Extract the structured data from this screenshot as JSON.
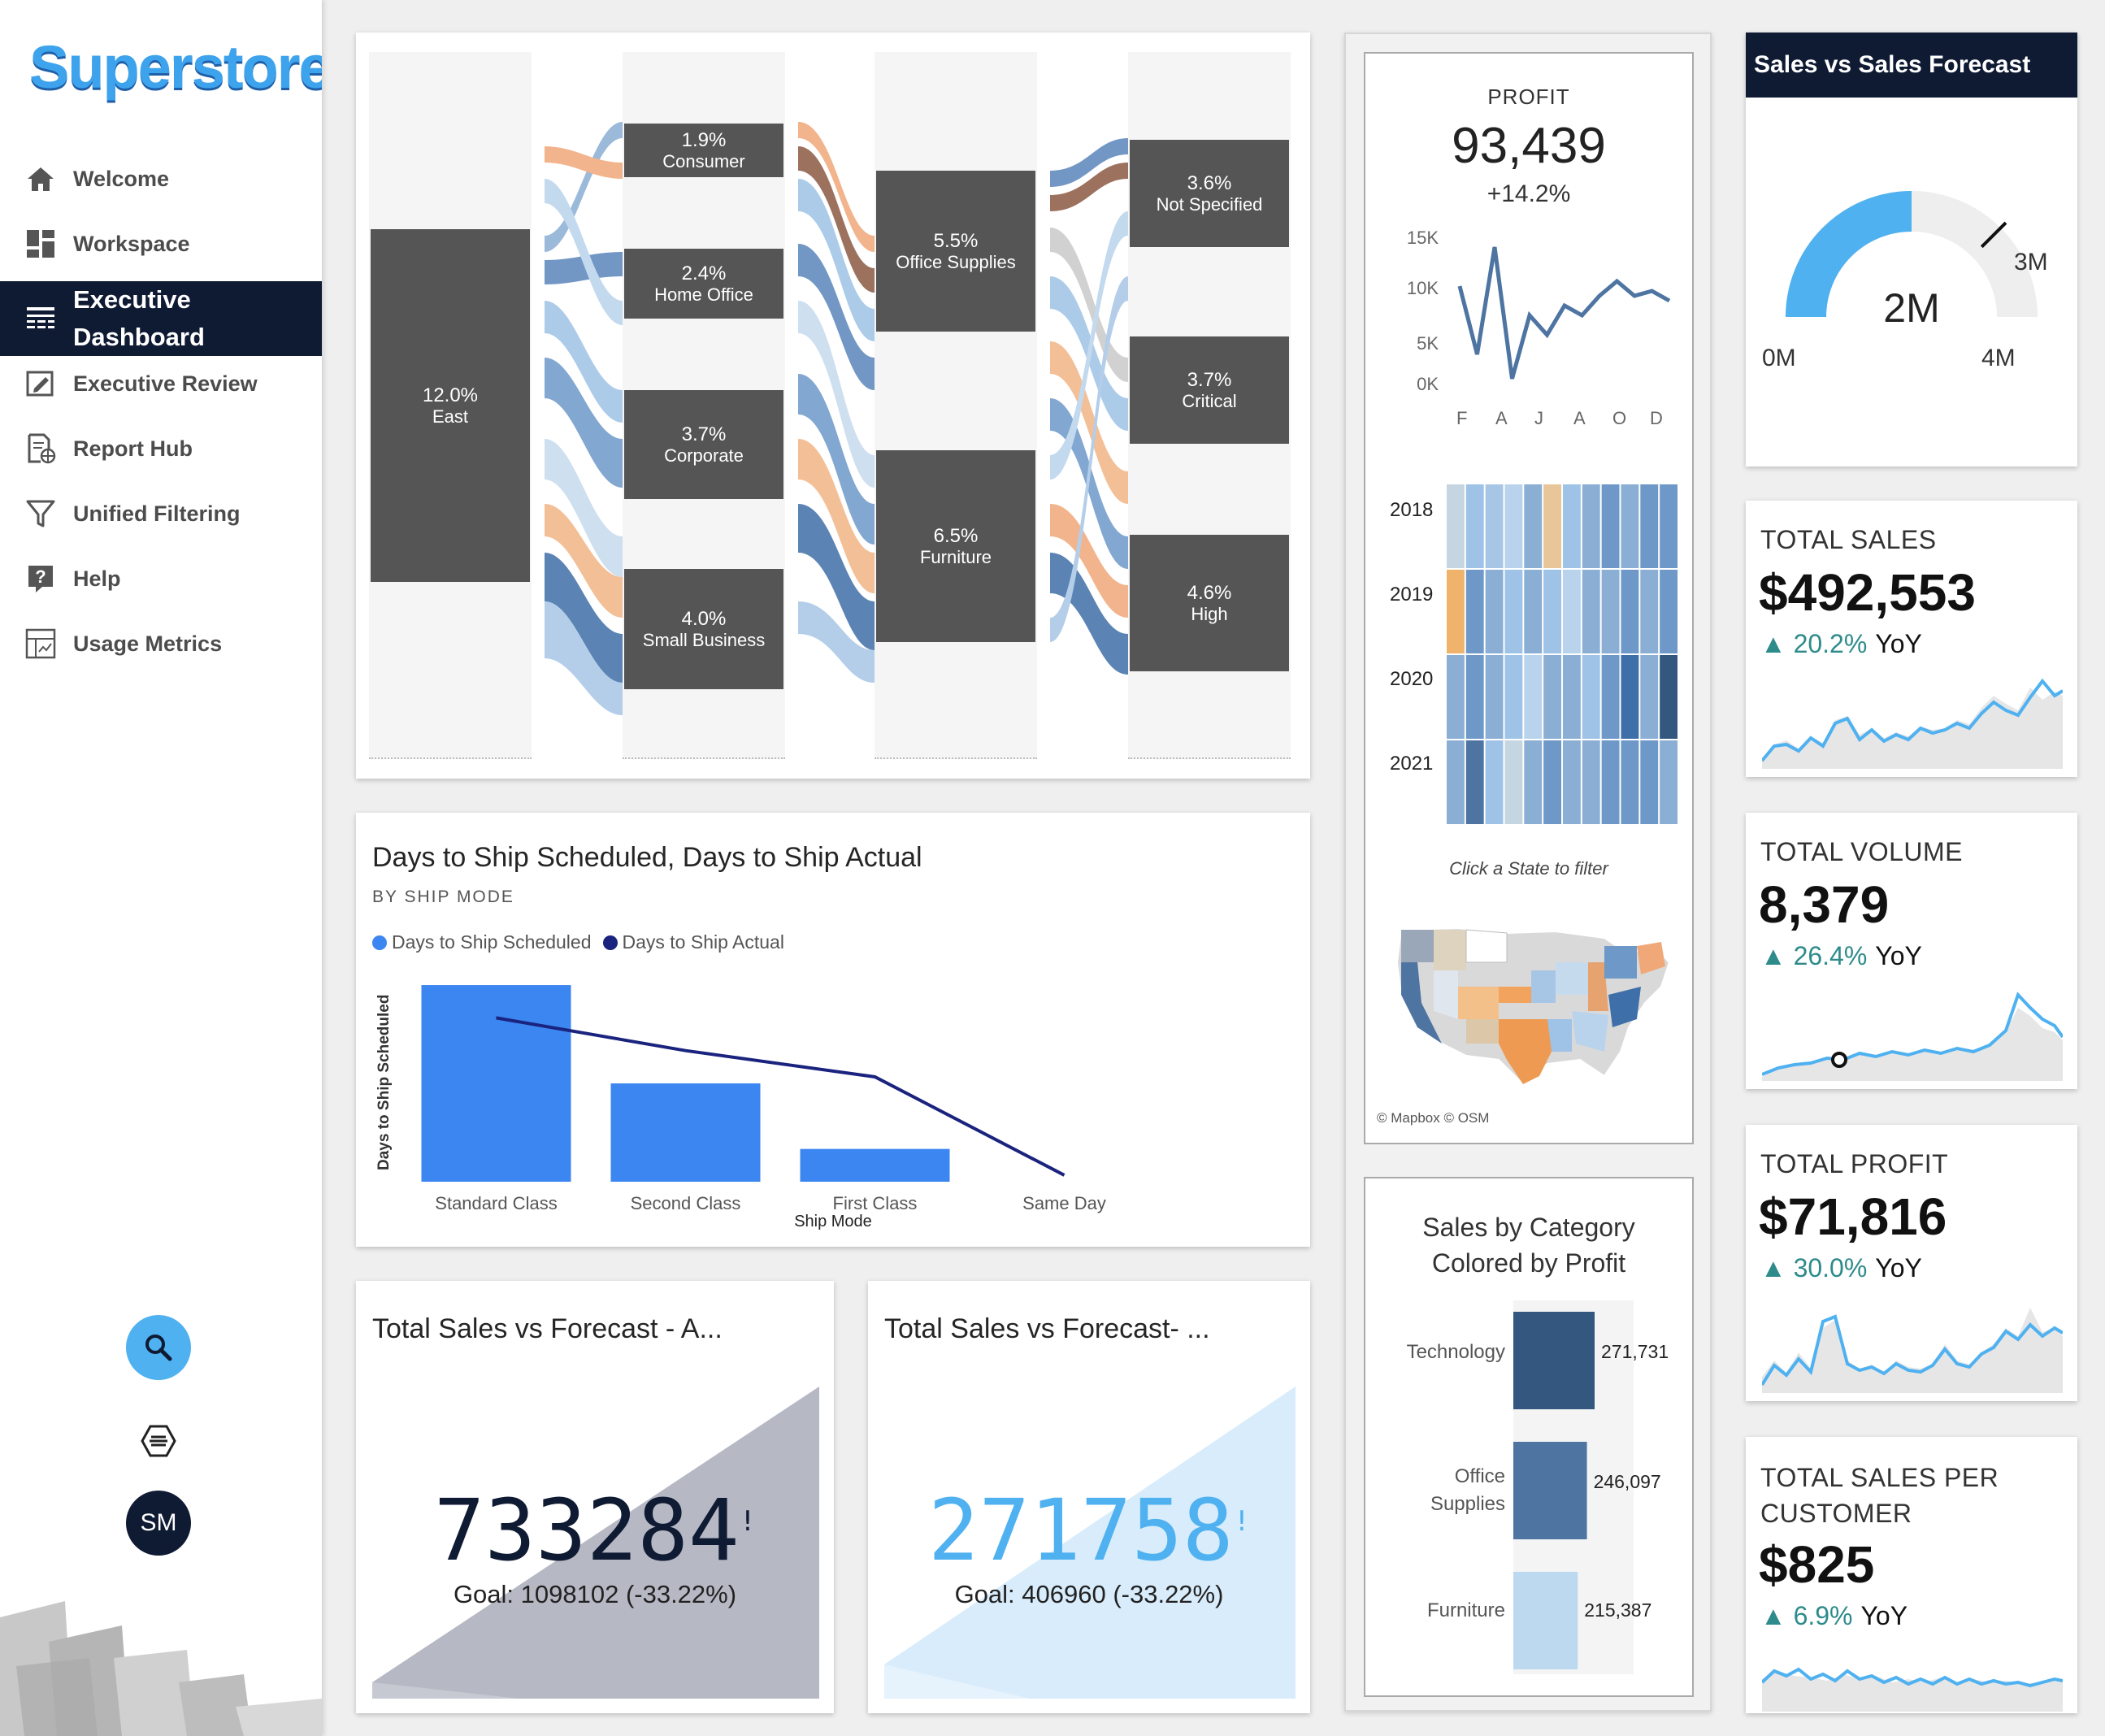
{
  "sidebar": {
    "logo": "Superstore",
    "items": [
      {
        "label": "Welcome"
      },
      {
        "label": "Workspace"
      },
      {
        "label_line1": "Executive",
        "label_line2": "Dashboard"
      },
      {
        "label": "Executive Review"
      },
      {
        "label": "Report Hub"
      },
      {
        "label": "Unified Filtering"
      },
      {
        "label": "Help"
      },
      {
        "label": "Usage Metrics"
      }
    ],
    "avatar": "SM"
  },
  "sankey": {
    "col1": [
      {
        "pct": "12.0%",
        "name": "East"
      }
    ],
    "col2": [
      {
        "pct": "1.9%",
        "name": "Consumer"
      },
      {
        "pct": "2.4%",
        "name": "Home Office"
      },
      {
        "pct": "3.7%",
        "name": "Corporate"
      },
      {
        "pct": "4.0%",
        "name": "Small Business"
      }
    ],
    "col3": [
      {
        "pct": "5.5%",
        "name": "Office Supplies"
      },
      {
        "pct": "6.5%",
        "name": "Furniture"
      }
    ],
    "col4": [
      {
        "pct": "3.6%",
        "name": "Not Specified"
      },
      {
        "pct": "3.7%",
        "name": "Critical"
      },
      {
        "pct": "4.6%",
        "name": "High"
      }
    ]
  },
  "ship_chart": {
    "title": "Days to Ship Scheduled, Days to Ship Actual",
    "subtitle": "BY SHIP MODE",
    "legend": [
      "Days to Ship Scheduled",
      "Days to Ship Actual"
    ],
    "ylabel": "Days to Ship Scheduled",
    "xlabel": "Ship Mode"
  },
  "chart_data": {
    "type": "bar",
    "categories": [
      "Standard Class",
      "Second Class",
      "First Class",
      "Same Day"
    ],
    "series": [
      {
        "name": "Days to Ship Scheduled",
        "type": "bar",
        "values": [
          6,
          3,
          1,
          0
        ]
      },
      {
        "name": "Days to Ship Actual",
        "type": "line",
        "values": [
          5,
          4,
          3.2,
          0.2
        ]
      }
    ],
    "xlabel": "Ship Mode",
    "ylabel": "Days to Ship Scheduled",
    "ylim": [
      0,
      6.2
    ],
    "colors": {
      "bar": "#3b86f0",
      "line": "#1a237e"
    }
  },
  "forecast_a": {
    "title": "Total Sales vs Forecast - A...",
    "value": "733284",
    "goal": "Goal: 1098102 (-33.22%)",
    "mark": "!"
  },
  "forecast_b": {
    "title": "Total Sales vs Forecast- ...",
    "value": "271758",
    "goal": "Goal: 406960 (-33.22%)",
    "mark": "!"
  },
  "profit": {
    "label": "PROFIT",
    "value": "93,439",
    "delta": "+14.2%",
    "y_ticks": [
      "15K",
      "10K",
      "5K",
      "0K"
    ],
    "x_ticks": [
      "F",
      "A",
      "J",
      "A",
      "O",
      "D"
    ],
    "series": [
      10,
      3,
      14,
      0.5,
      7,
      5,
      8,
      7,
      9,
      10.5,
      9,
      9.5,
      8.5
    ],
    "heat_years": [
      "2018",
      "2019",
      "2020",
      "2021"
    ],
    "filter_hint": "Click a State to filter",
    "attribution": "© Mapbox  © OSM"
  },
  "category": {
    "title_line1": "Sales by Category",
    "title_line2": "Colored by Profit",
    "items": [
      {
        "name": "Technology",
        "value": 271731,
        "label": "271,731",
        "color": "#33577e"
      },
      {
        "name_line1": "Office",
        "name_line2": "Supplies",
        "value": 246097,
        "label": "246,097",
        "color": "#4e74a2"
      },
      {
        "name": "Furniture",
        "value": 215387,
        "label": "215,387",
        "color": "#bcd9ef"
      }
    ]
  },
  "gauge": {
    "title": "Sales vs Sales Forecast",
    "value_label": "2M",
    "min_label": "0M",
    "max_label": "4M",
    "target_label": "3M",
    "value": 2,
    "max": 4,
    "target": 3,
    "color": "#4fb1f0"
  },
  "kpis": [
    {
      "title": "TOTAL SALES",
      "value": "$492,553",
      "delta": "20.2%",
      "yoy": "YoY"
    },
    {
      "title": "TOTAL VOLUME",
      "value": "8,379",
      "delta": "26.4%",
      "yoy": "YoY"
    },
    {
      "title": "TOTAL PROFIT",
      "value": "$71,816",
      "delta": "30.0%",
      "yoy": "YoY"
    },
    {
      "title_line1": "TOTAL SALES PER",
      "title_line2": "CUSTOMER",
      "value": "$825",
      "delta": "6.9%",
      "yoy": "YoY"
    }
  ]
}
